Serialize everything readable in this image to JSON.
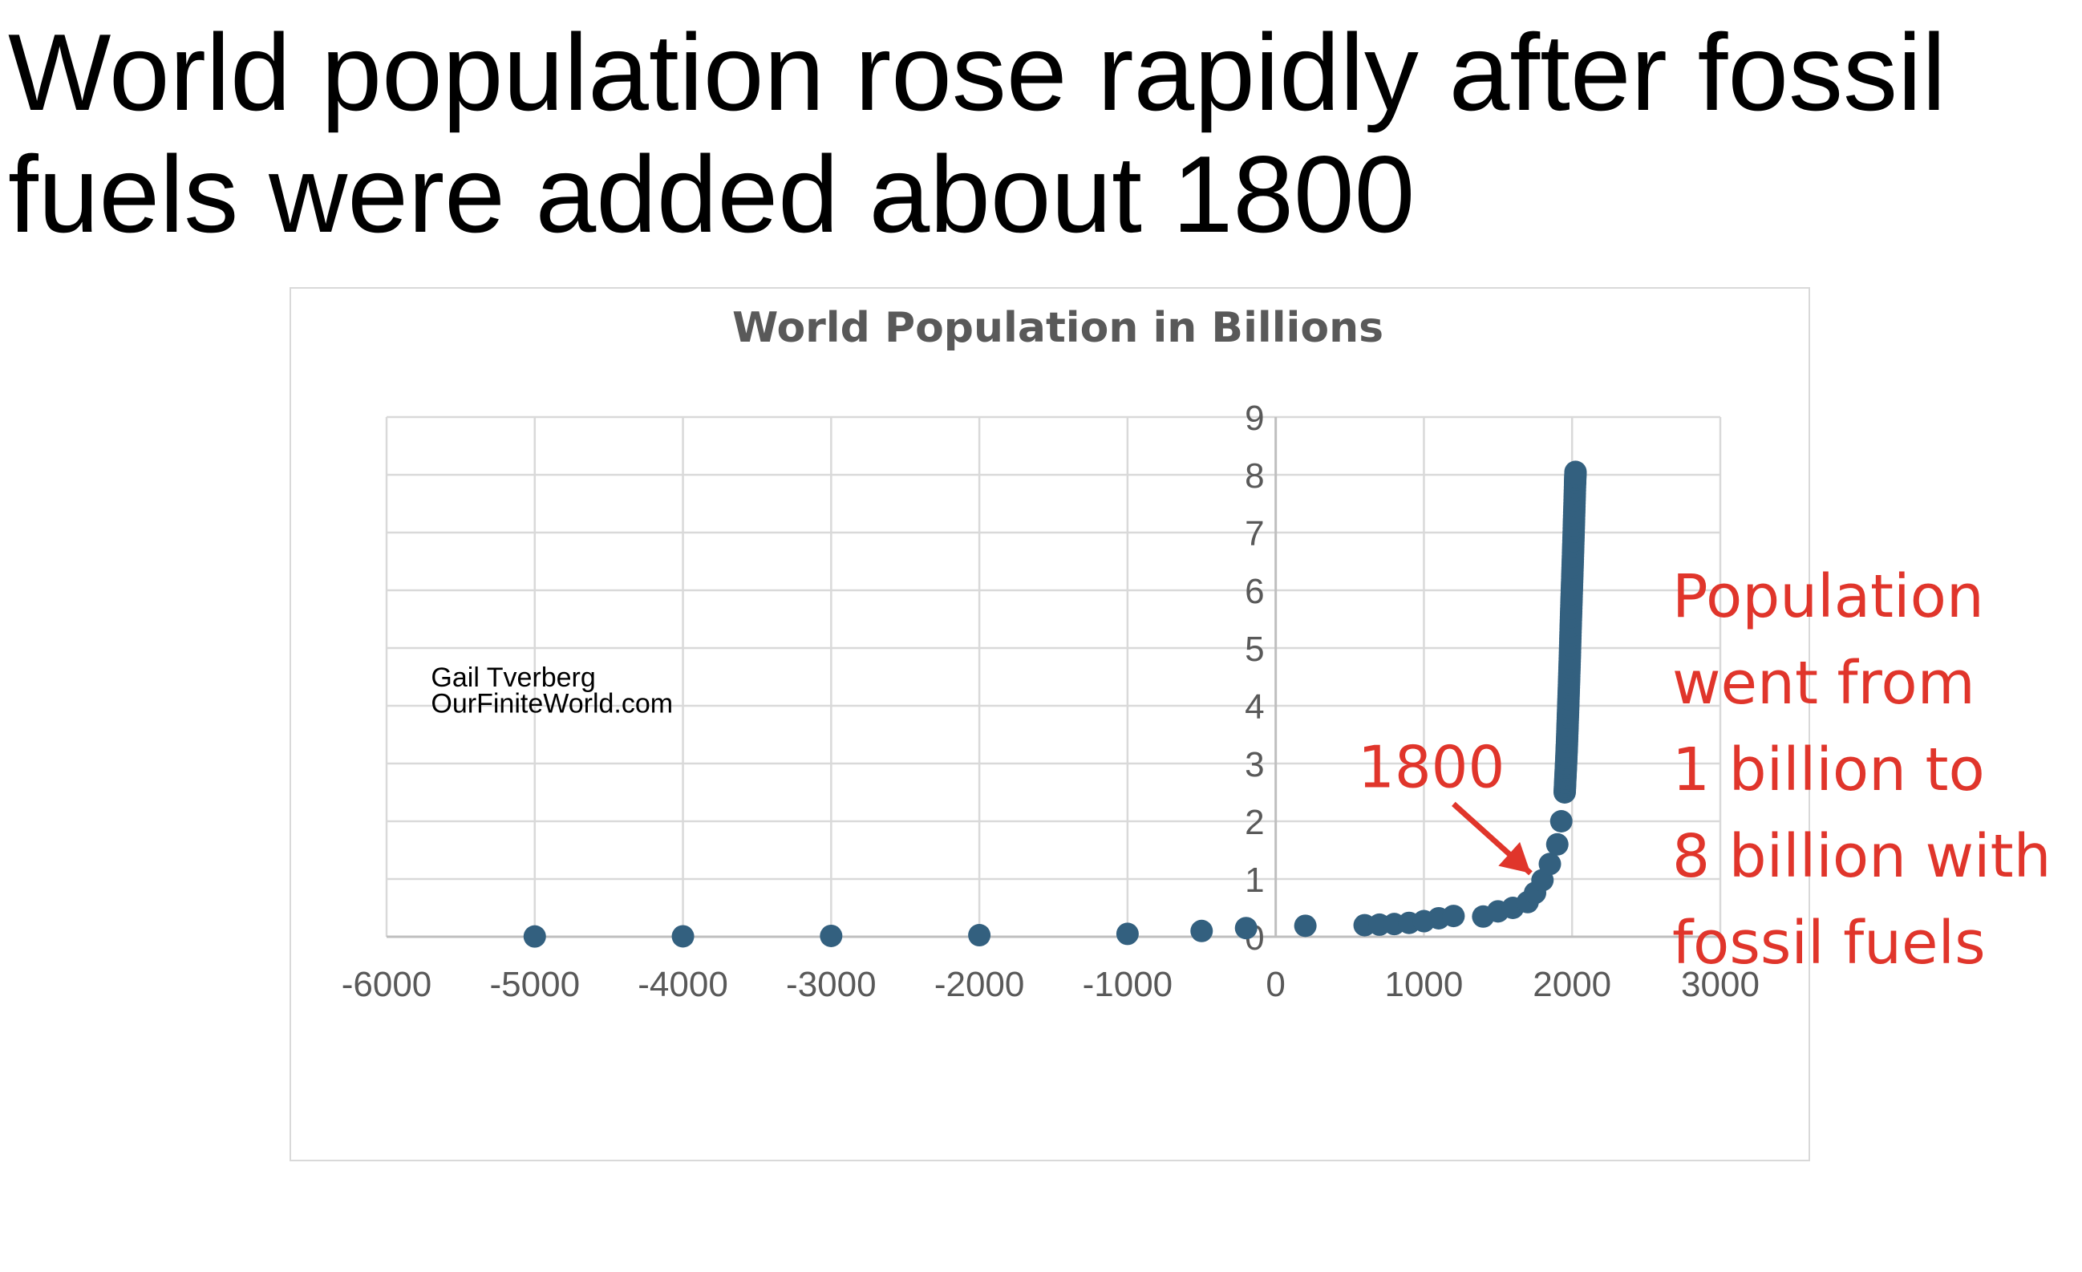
{
  "slide": {
    "title_lines": [
      "World population rose rapidly after fossil",
      "fuels were added about 1800"
    ]
  },
  "annotation": {
    "lines": [
      "Population",
      "went from",
      "1 billion to",
      "8 billion with",
      "fossil fuels"
    ],
    "color": "#e0352b"
  },
  "chart_data": {
    "type": "scatter",
    "title": "World Population in Billions",
    "xlabel": "",
    "ylabel": "",
    "xlim": [
      -6000,
      3000
    ],
    "ylim": [
      0,
      9
    ],
    "x_ticks": [
      -6000,
      -5000,
      -4000,
      -3000,
      -2000,
      -1000,
      0,
      1000,
      2000,
      3000
    ],
    "y_ticks": [
      0,
      1,
      2,
      3,
      4,
      5,
      6,
      7,
      8,
      9
    ],
    "grid": true,
    "legend": "none",
    "marker_color": "#33607f",
    "series": [
      {
        "x": [
          -5000,
          -4000,
          -3000,
          -2000,
          -1000,
          -500,
          -200,
          200,
          600,
          700,
          800,
          900,
          1000,
          1100,
          1200,
          1400,
          1500,
          1600,
          1700,
          1750,
          1800,
          1850,
          1900,
          1927,
          1950,
          1955,
          1960,
          1965,
          1970,
          1975,
          1980,
          1985,
          1990,
          1995,
          2000,
          2005,
          2010,
          2015,
          2020,
          2023
        ],
        "y": [
          0.005,
          0.007,
          0.014,
          0.027,
          0.05,
          0.1,
          0.15,
          0.19,
          0.2,
          0.21,
          0.22,
          0.24,
          0.27,
          0.32,
          0.36,
          0.35,
          0.44,
          0.5,
          0.6,
          0.76,
          0.98,
          1.26,
          1.6,
          2.0,
          2.5,
          2.77,
          3.03,
          3.33,
          3.7,
          4.07,
          4.46,
          4.87,
          5.33,
          5.74,
          6.14,
          6.54,
          6.96,
          7.4,
          7.84,
          8.05
        ]
      }
    ],
    "annotations": [
      {
        "text": "Gail Tverberg",
        "x": -5700,
        "y": 4.5
      },
      {
        "text": "OurFiniteWorld.com",
        "x": -5700,
        "y": 4.05
      },
      {
        "text": "1800",
        "x": 1050,
        "y": 2.95,
        "color": "#e0352b"
      }
    ],
    "arrow": {
      "from": [
        1200,
        2.3
      ],
      "to": [
        1720,
        1.1
      ],
      "color": "#e0352b"
    }
  }
}
